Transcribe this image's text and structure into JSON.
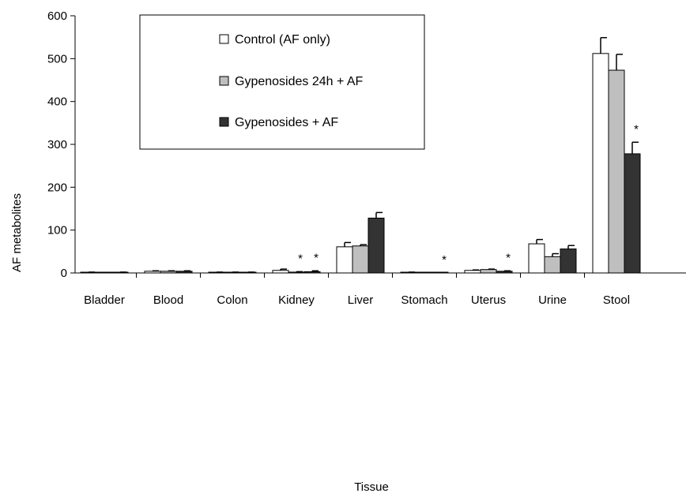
{
  "chart_data": {
    "type": "bar",
    "title": "",
    "xlabel": "Tissue",
    "ylabel": "AF metabolites",
    "ylim": [
      0,
      600
    ],
    "yticks": [
      0,
      100,
      200,
      300,
      400,
      500,
      600
    ],
    "categories": [
      "Bladder",
      "Blood",
      "Colon",
      "Kidney",
      "Liver",
      "Stomach",
      "Uterus",
      "Urine",
      "Stool"
    ],
    "series": [
      {
        "name": "Control    (AF only)",
        "color": "#ffffff",
        "values": [
          1,
          4,
          1,
          6,
          61,
          1,
          6,
          68,
          512
        ],
        "errors": [
          1,
          1,
          1,
          3,
          10,
          1,
          1,
          10,
          37
        ]
      },
      {
        "name": "Gypenosides 24h    + AF",
        "color": "#bfbfbf",
        "values": [
          0,
          4,
          1,
          2,
          63,
          0,
          8,
          38,
          473
        ],
        "errors": [
          0,
          1,
          1,
          1,
          3,
          0,
          1,
          7,
          37
        ]
      },
      {
        "name": "Gypenosides + AF",
        "color": "#333333",
        "values": [
          1,
          4,
          1,
          3,
          128,
          0,
          4,
          56,
          278
        ],
        "errors": [
          1,
          1,
          1,
          2,
          13,
          0,
          1,
          8,
          27
        ]
      }
    ],
    "significance": [
      {
        "category": "Kidney",
        "series": 1,
        "label": "*"
      },
      {
        "category": "Kidney",
        "series": 2,
        "label": "*"
      },
      {
        "category": "Stomach",
        "series": 2,
        "label": "*"
      },
      {
        "category": "Uterus",
        "series": 2,
        "label": "*"
      },
      {
        "category": "Stool",
        "series": 2,
        "label": "*"
      }
    ],
    "legend_position": "top-left",
    "grid": false
  }
}
